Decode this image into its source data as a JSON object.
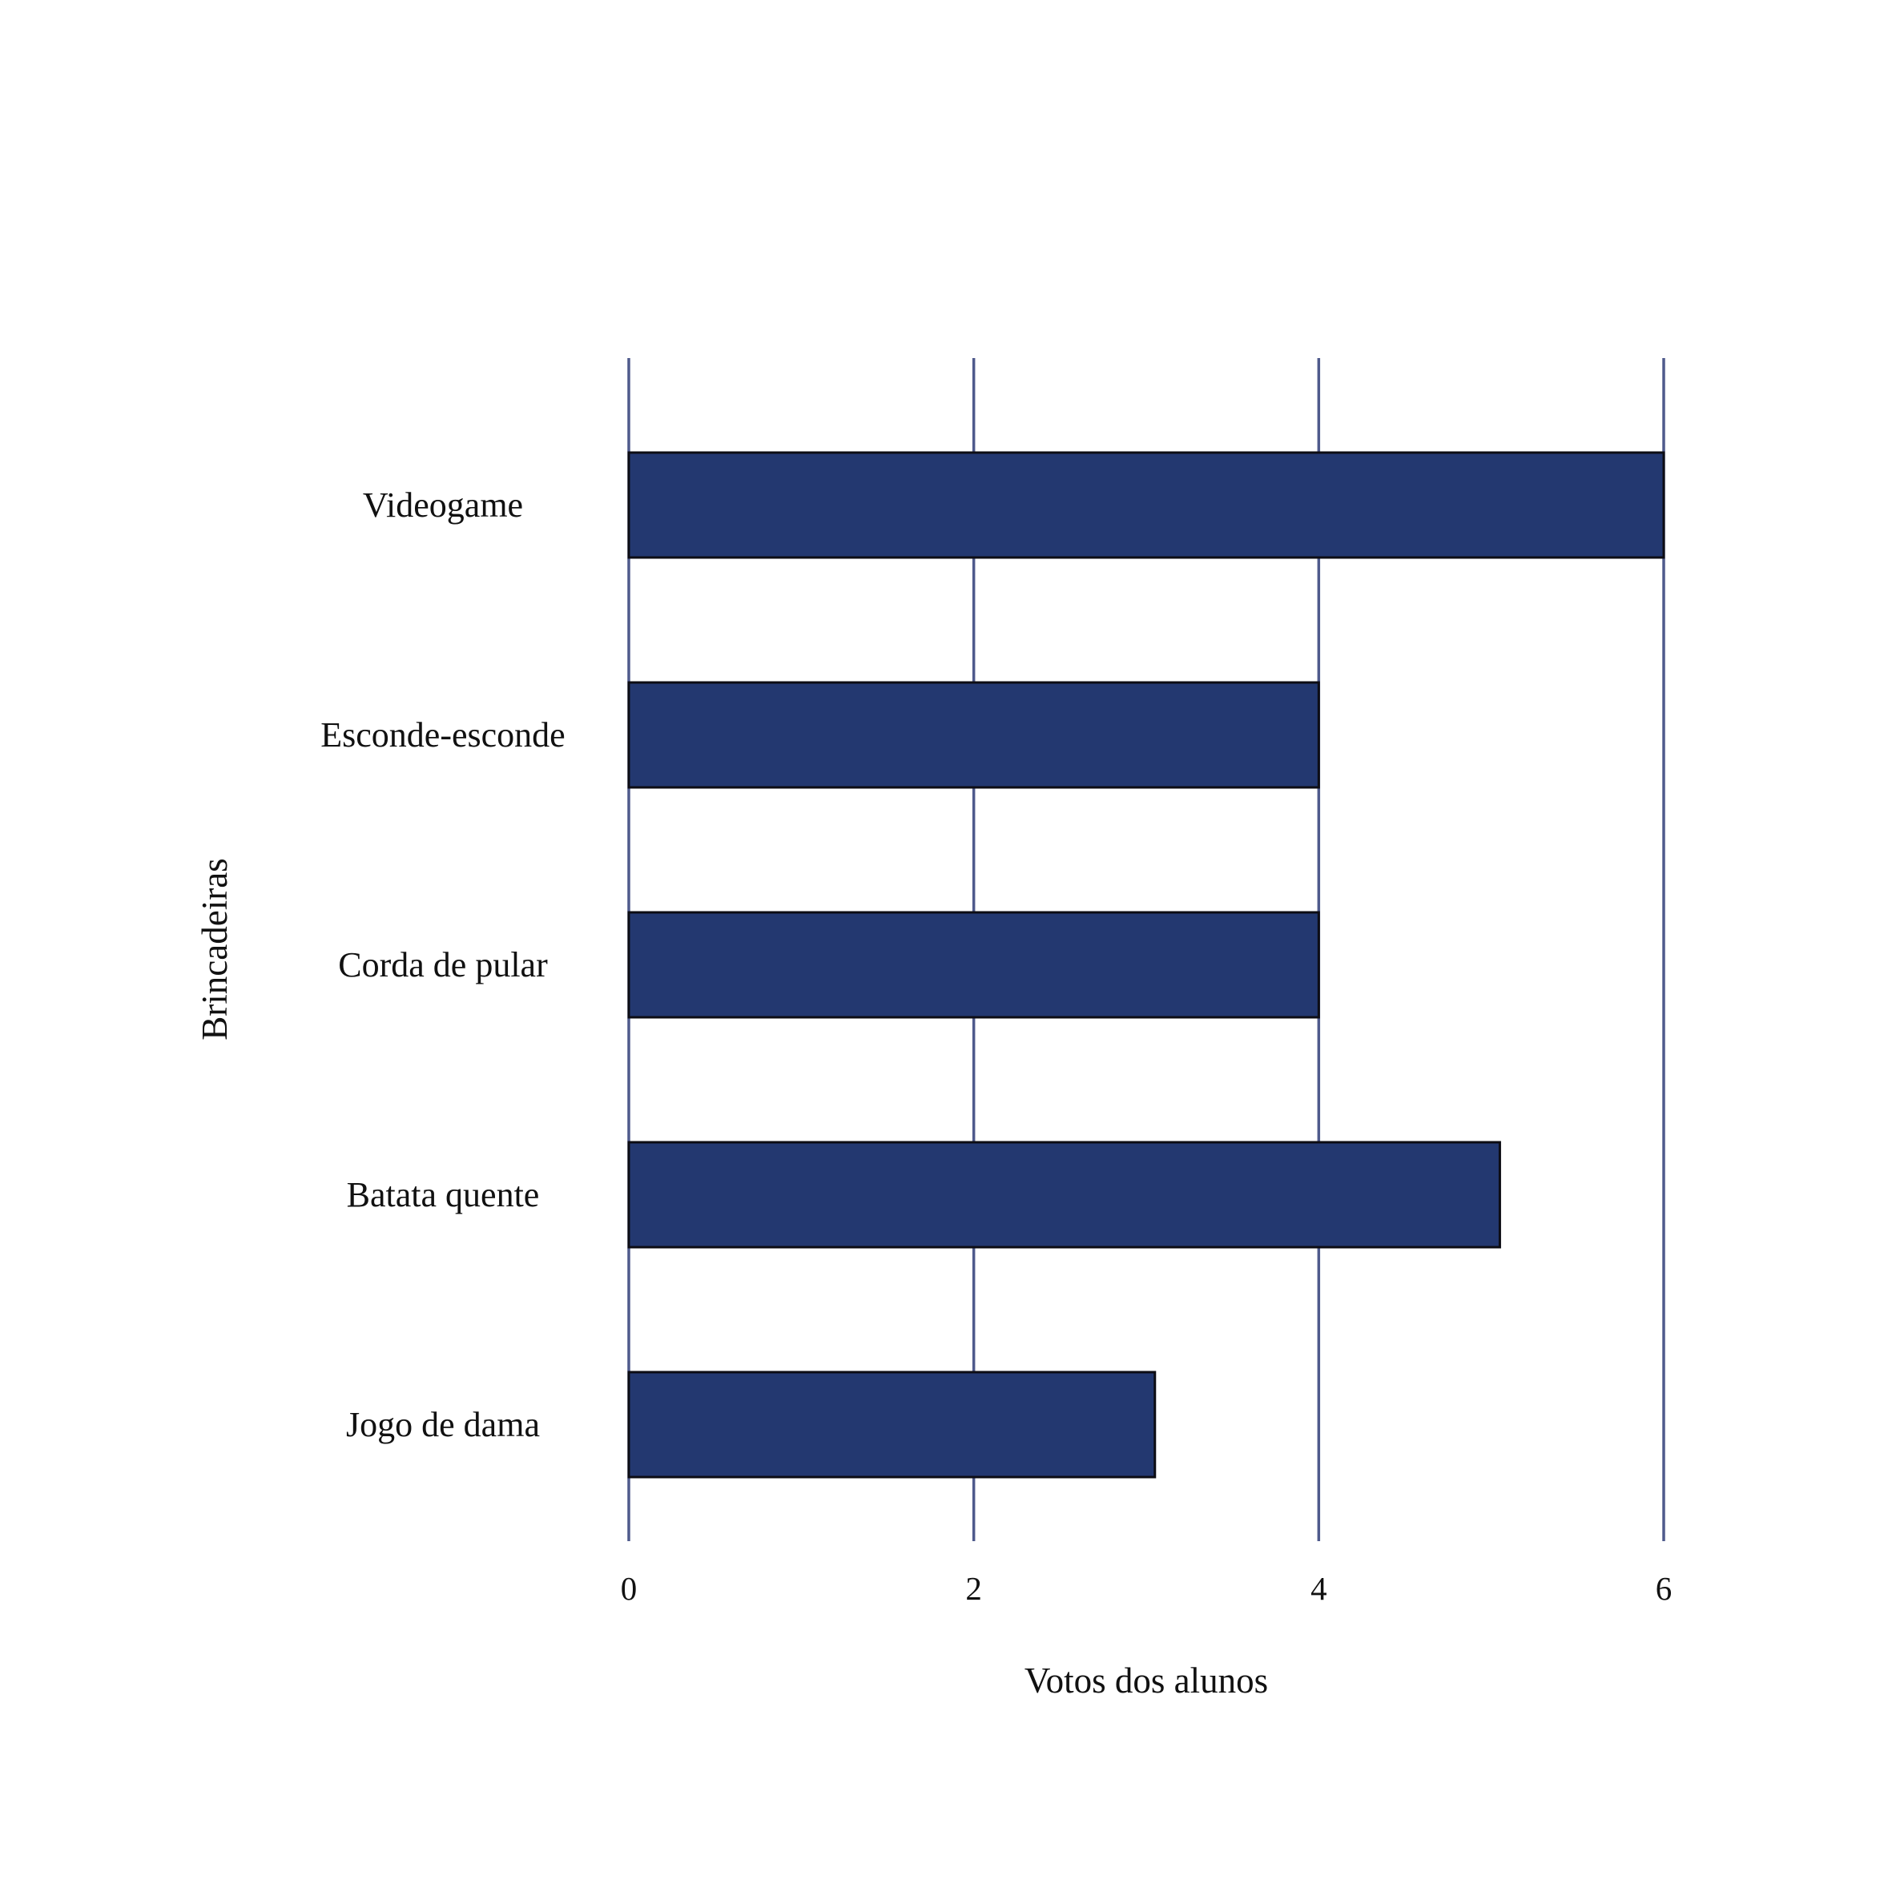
{
  "chart_data": {
    "type": "bar",
    "orientation": "horizontal",
    "title": "",
    "xlabel": "Votos dos alunos",
    "ylabel": "Brincadeiras",
    "categories": [
      "Videogame",
      "Esconde-esconde",
      "Corda de pular",
      "Batata quente",
      "Jogo de dama"
    ],
    "values": [
      6,
      4,
      4,
      5.05,
      3.05
    ],
    "xlim": [
      0,
      6
    ],
    "xticks": [
      "0",
      "2",
      "4",
      "6"
    ],
    "grid": "vertical",
    "legend": "none"
  },
  "colors": {
    "bar_fill": "#233870",
    "bar_stroke": "#0d0d14",
    "grid": "#4f5a8c",
    "text": "#111111",
    "background": "#ffffff"
  }
}
